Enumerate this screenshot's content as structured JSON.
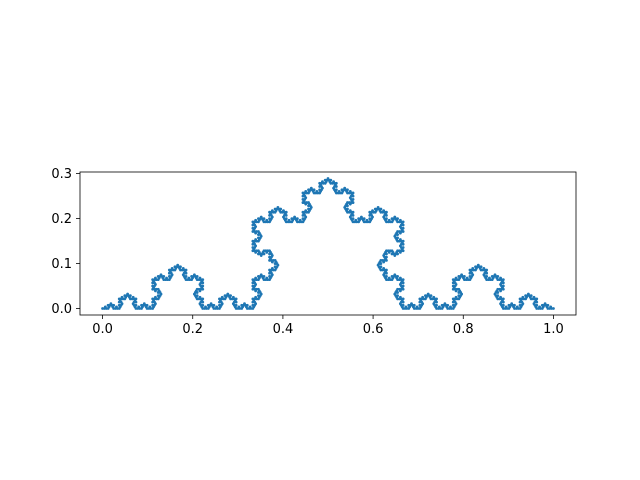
{
  "chart_data": {
    "type": "line",
    "title": "",
    "xlabel": "",
    "ylabel": "",
    "xlim": [
      -0.05,
      1.05
    ],
    "ylim": [
      -0.0144,
      0.3031
    ],
    "x_ticks": [
      0.0,
      0.2,
      0.4,
      0.6,
      0.8,
      1.0
    ],
    "x_tick_labels": [
      "0.0",
      "0.2",
      "0.4",
      "0.6",
      "0.8",
      "1.0"
    ],
    "y_ticks": [
      0.0,
      0.1,
      0.2,
      0.3
    ],
    "y_tick_labels": [
      "0.0",
      "0.1",
      "0.2",
      "0.3"
    ],
    "grid": false,
    "legend": "none",
    "aspect": "equal",
    "series": [
      {
        "curve": "koch",
        "iterations": 5,
        "x_start": 0.0,
        "x_end": 1.0,
        "y_max": 0.2887,
        "color": "#1f77b4",
        "linestyle": "solid",
        "marker": "dot"
      }
    ]
  }
}
